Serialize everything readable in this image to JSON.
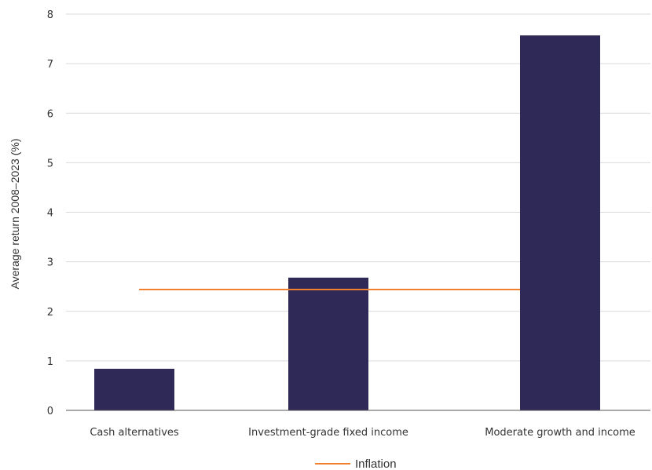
{
  "chart_data": {
    "type": "bar",
    "categories": [
      "Cash alternatives",
      "Investment-grade fixed income",
      "Moderate growth and income"
    ],
    "series": [
      {
        "values": [
          0.84,
          2.68,
          7.57
        ],
        "color": "#2e2957"
      }
    ],
    "reference_line": {
      "name": "Inflation",
      "value": 2.44,
      "color": "#f07f2e",
      "from_category": 0,
      "to_category": 2
    },
    "xlabel": "",
    "ylabel": "Average return 2008–2023 (%)",
    "ylim": [
      0,
      8
    ],
    "yticks": [
      0,
      1,
      2,
      3,
      4,
      5,
      6,
      7,
      8
    ],
    "grid": true,
    "legend": {
      "position": "bottom-center",
      "entries": [
        "Inflation"
      ]
    }
  }
}
